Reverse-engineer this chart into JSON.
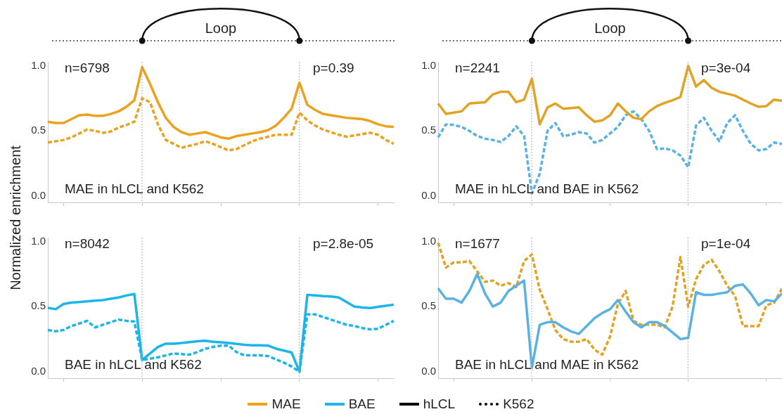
{
  "chart_data": [
    {
      "type": "line",
      "ylabel": "Normalized enrichment",
      "categories": [
        null,
        null,
        null,
        null,
        null,
        null,
        null,
        null,
        null,
        null,
        null,
        null,
        null,
        null,
        null,
        null,
        null,
        null,
        null,
        null,
        null,
        null,
        null,
        null,
        null,
        null,
        null,
        null,
        null,
        null,
        null,
        null,
        null,
        null,
        null,
        null,
        null,
        null,
        null,
        null,
        null,
        null,
        null,
        null,
        null
      ],
      "ylim": [
        -0.05,
        1.03
      ],
      "yticks": [
        {
          "value": 0,
          "label": "0.0"
        },
        {
          "value": 0.5,
          "label": "0.5"
        },
        {
          "value": 1,
          "label": "1.0"
        }
      ],
      "tick_labels": "y",
      "grid": false,
      "legend": false,
      "marker": "none",
      "annotations": [
        "n=6798",
        "p=0.39",
        "MAE in hLCL and K562",
        "Loop"
      ],
      "series": [
        {
          "color": "#eba21e",
          "line_style": "solid",
          "values": [
            0.57,
            0.56,
            0.56,
            0.59,
            0.62,
            0.625,
            0.615,
            0.615,
            0.63,
            0.65,
            0.685,
            0.735,
            0.99,
            0.86,
            0.72,
            0.6,
            0.53,
            0.49,
            0.47,
            0.48,
            0.49,
            0.47,
            0.45,
            0.44,
            0.46,
            0.47,
            0.48,
            0.49,
            0.505,
            0.54,
            0.6,
            0.67,
            0.87,
            0.7,
            0.66,
            0.63,
            0.62,
            0.61,
            0.6,
            0.595,
            0.59,
            0.575,
            0.55,
            0.535,
            0.53
          ]
        },
        {
          "color": "#eba21e",
          "line_style": "dashed",
          "values": [
            0.41,
            0.42,
            0.43,
            0.45,
            0.48,
            0.51,
            0.5,
            0.485,
            0.495,
            0.525,
            0.545,
            0.57,
            0.75,
            0.72,
            0.55,
            0.43,
            0.4,
            0.37,
            0.385,
            0.4,
            0.42,
            0.4,
            0.375,
            0.35,
            0.36,
            0.39,
            0.42,
            0.44,
            0.455,
            0.47,
            0.47,
            0.47,
            0.64,
            0.58,
            0.54,
            0.51,
            0.49,
            0.47,
            0.455,
            0.465,
            0.475,
            0.485,
            0.47,
            0.43,
            0.4
          ]
        }
      ]
    },
    {
      "type": "line",
      "categories": [
        null,
        null,
        null,
        null,
        null,
        null,
        null,
        null,
        null,
        null,
        null,
        null,
        null,
        null,
        null,
        null,
        null,
        null,
        null,
        null,
        null,
        null,
        null,
        null,
        null,
        null,
        null,
        null,
        null,
        null,
        null,
        null,
        null,
        null,
        null,
        null,
        null,
        null,
        null,
        null,
        null,
        null,
        null,
        null,
        null
      ],
      "ylim": [
        -0.05,
        1.03
      ],
      "yticks": [
        {
          "value": 0,
          "label": "0.0"
        },
        {
          "value": 0.5,
          "label": "0.5"
        },
        {
          "value": 1,
          "label": "1.0"
        }
      ],
      "tick_labels": "y",
      "grid": false,
      "legend": false,
      "marker": "none",
      "annotations": [
        "n=2241",
        "p=3e-04",
        "MAE in hLCL and BAE in K562",
        "Loop"
      ],
      "series": [
        {
          "color": "#e2a325",
          "line_style": "solid",
          "values": [
            0.71,
            0.63,
            0.64,
            0.65,
            0.71,
            0.715,
            0.72,
            0.78,
            0.8,
            0.8,
            0.72,
            0.74,
            0.9,
            0.55,
            0.68,
            0.71,
            0.67,
            0.675,
            0.68,
            0.62,
            0.57,
            0.58,
            0.62,
            0.71,
            0.65,
            0.6,
            0.59,
            0.65,
            0.69,
            0.715,
            0.735,
            0.76,
            1.0,
            0.84,
            0.89,
            0.83,
            0.8,
            0.785,
            0.77,
            0.74,
            0.71,
            0.685,
            0.69,
            0.74,
            0.73
          ]
        },
        {
          "color": "#5ab2e2",
          "line_style": "dashed",
          "values": [
            0.45,
            0.55,
            0.545,
            0.53,
            0.5,
            0.46,
            0.44,
            0.43,
            0.415,
            0.46,
            0.535,
            0.46,
            0.02,
            0.17,
            0.5,
            0.56,
            0.46,
            0.47,
            0.49,
            0.48,
            0.41,
            0.43,
            0.48,
            0.53,
            0.62,
            0.65,
            0.59,
            0.5,
            0.36,
            0.365,
            0.35,
            0.31,
            0.22,
            0.54,
            0.6,
            0.5,
            0.42,
            0.56,
            0.62,
            0.5,
            0.4,
            0.35,
            0.36,
            0.41,
            0.4
          ]
        }
      ]
    },
    {
      "type": "line",
      "categories": [
        null,
        null,
        null,
        null,
        null,
        null,
        null,
        null,
        null,
        null,
        null,
        null,
        null,
        null,
        null,
        null,
        null,
        null,
        null,
        null,
        null,
        null,
        null,
        null,
        null,
        null,
        null,
        null,
        null,
        null,
        null,
        null,
        null,
        null,
        null,
        null,
        null,
        null,
        null,
        null,
        null,
        null,
        null,
        null,
        null
      ],
      "ylim": [
        -0.05,
        1.03
      ],
      "yticks": [
        {
          "value": 0,
          "label": "0.0"
        },
        {
          "value": 0.5,
          "label": "0.5"
        },
        {
          "value": 1,
          "label": "1.0"
        }
      ],
      "tick_labels": "y",
      "grid": false,
      "legend": false,
      "marker": "none",
      "annotations": [
        "n=8042",
        "p=2.8e-05",
        "BAE in hLCL and K562"
      ],
      "series": [
        {
          "color": "#1cb5ea",
          "line_style": "solid",
          "values": [
            0.49,
            0.48,
            0.52,
            0.53,
            0.535,
            0.54,
            0.545,
            0.55,
            0.56,
            0.57,
            0.585,
            0.597,
            0.09,
            0.14,
            0.19,
            0.215,
            0.215,
            0.22,
            0.227,
            0.233,
            0.237,
            0.23,
            0.225,
            0.22,
            0.213,
            0.206,
            0.203,
            0.203,
            0.2,
            0.177,
            0.162,
            0.147,
            0.0,
            0.59,
            0.586,
            0.58,
            0.578,
            0.57,
            0.535,
            0.5,
            0.493,
            0.489,
            0.498,
            0.506,
            0.515
          ]
        },
        {
          "color": "#1cb5ea",
          "line_style": "dashed",
          "values": [
            0.32,
            0.31,
            0.32,
            0.35,
            0.37,
            0.39,
            0.34,
            0.36,
            0.38,
            0.4,
            0.39,
            0.385,
            0.09,
            0.1,
            0.11,
            0.125,
            0.14,
            0.135,
            0.13,
            0.15,
            0.175,
            0.19,
            0.2,
            0.2,
            0.15,
            0.125,
            0.125,
            0.125,
            0.12,
            0.095,
            0.07,
            0.04,
            0.0,
            0.44,
            0.44,
            0.42,
            0.4,
            0.38,
            0.36,
            0.35,
            0.335,
            0.325,
            0.33,
            0.36,
            0.39
          ]
        }
      ]
    },
    {
      "type": "line",
      "categories": [
        null,
        null,
        null,
        null,
        null,
        null,
        null,
        null,
        null,
        null,
        null,
        null,
        null,
        null,
        null,
        null,
        null,
        null,
        null,
        null,
        null,
        null,
        null,
        null,
        null,
        null,
        null,
        null,
        null,
        null,
        null,
        null,
        null,
        null,
        null,
        null,
        null,
        null,
        null,
        null,
        null,
        null,
        null,
        null,
        null
      ],
      "ylim": [
        -0.05,
        1.03
      ],
      "yticks": [
        {
          "value": 0,
          "label": "0.0"
        },
        {
          "value": 0.5,
          "label": "0.5"
        },
        {
          "value": 1,
          "label": "1.0"
        }
      ],
      "tick_labels": "y",
      "grid": false,
      "legend": false,
      "marker": "none",
      "annotations": [
        "n=1677",
        "p=1e-04",
        "BAE in hLCL and MAE in K562"
      ],
      "series": [
        {
          "color": "#5ab2e2",
          "line_style": "solid",
          "values": [
            0.64,
            0.56,
            0.56,
            0.53,
            0.62,
            0.75,
            0.6,
            0.5,
            0.53,
            0.62,
            0.66,
            0.7,
            0.03,
            0.36,
            0.38,
            0.38,
            0.34,
            0.31,
            0.29,
            0.35,
            0.41,
            0.45,
            0.48,
            0.55,
            0.46,
            0.38,
            0.34,
            0.38,
            0.38,
            0.35,
            0.3,
            0.25,
            0.26,
            0.61,
            0.59,
            0.59,
            0.6,
            0.61,
            0.66,
            0.67,
            0.6,
            0.51,
            0.55,
            0.54,
            0.6
          ]
        },
        {
          "color": "#e2a325",
          "line_style": "dashed",
          "values": [
            0.99,
            0.8,
            0.84,
            0.84,
            0.85,
            0.77,
            0.69,
            0.7,
            0.66,
            0.68,
            0.65,
            0.85,
            0.9,
            0.63,
            0.48,
            0.32,
            0.25,
            0.23,
            0.23,
            0.25,
            0.17,
            0.13,
            0.27,
            0.52,
            0.62,
            0.39,
            0.36,
            0.36,
            0.36,
            0.34,
            0.5,
            0.88,
            0.5,
            0.71,
            0.82,
            0.86,
            0.77,
            0.66,
            0.58,
            0.35,
            0.35,
            0.35,
            0.51,
            0.53,
            0.64
          ]
        }
      ]
    },
    {
      "type": "other",
      "legend": "bottom",
      "series": [
        {
          "name": "MAE",
          "color": "#f0a415",
          "line_style": "solid"
        },
        {
          "name": "BAE",
          "color": "#20b6ea",
          "line_style": "solid"
        },
        {
          "name": "hLCL",
          "color": "#000000",
          "line_style": "solid"
        },
        {
          "name": "K562",
          "color": "#000000",
          "line_style": "dotted"
        }
      ]
    }
  ]
}
